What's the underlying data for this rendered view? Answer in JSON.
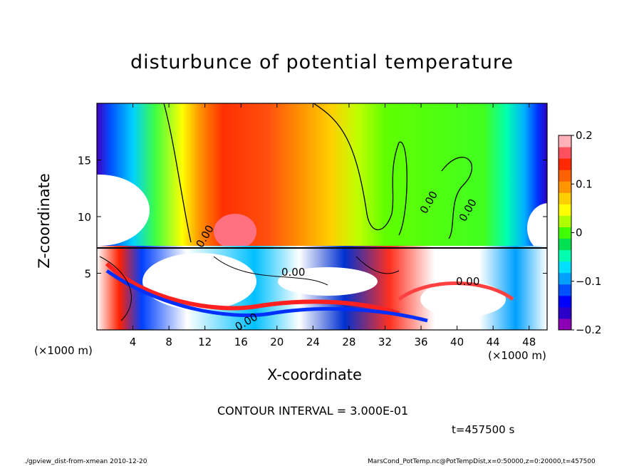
{
  "chart_data": {
    "type": "heatmap",
    "title": "disturbunce of potential temperature",
    "xlabel": "X-coordinate",
    "ylabel": "Z-coordinate",
    "x_unit_left": "(×1000 m)",
    "x_unit_right": "(×1000 m)",
    "x_ticks": [
      "4",
      "8",
      "12",
      "16",
      "20",
      "24",
      "28",
      "32",
      "36",
      "40",
      "44",
      "48"
    ],
    "y_ticks": [
      "5",
      "10",
      "15"
    ],
    "xlim": [
      0,
      50
    ],
    "ylim": [
      0,
      20
    ],
    "colorbar": {
      "range": [
        -0.2,
        0.2
      ],
      "tick_labels": [
        "0.2",
        "0.1",
        "0",
        "−0.1",
        "−0.2"
      ],
      "tick_values": [
        0.2,
        0.1,
        0,
        -0.1,
        -0.2
      ],
      "colors": [
        "#8b00b4",
        "#2a00c8",
        "#0000ff",
        "#0050ff",
        "#00a0ff",
        "#00e0ff",
        "#00ffb0",
        "#00e050",
        "#40ff00",
        "#b0ff00",
        "#ffff00",
        "#ffd000",
        "#ff9600",
        "#ff6000",
        "#ff2800",
        "#ff5060",
        "#ffb0b8"
      ]
    },
    "contour_labels": [
      "0.00",
      "0.00",
      "0.00",
      "0.00",
      "0.00",
      "0.00"
    ]
  },
  "contour_interval": "CONTOUR INTERVAL = 3.000E-01",
  "time_label": "t=457500 s",
  "footer": {
    "left": "./gpview_dist-from-xmean  2010-12-20",
    "right": "MarsCond_PotTemp.nc@PotTempDist,x=0:50000,z=0:20000,t=457500"
  }
}
